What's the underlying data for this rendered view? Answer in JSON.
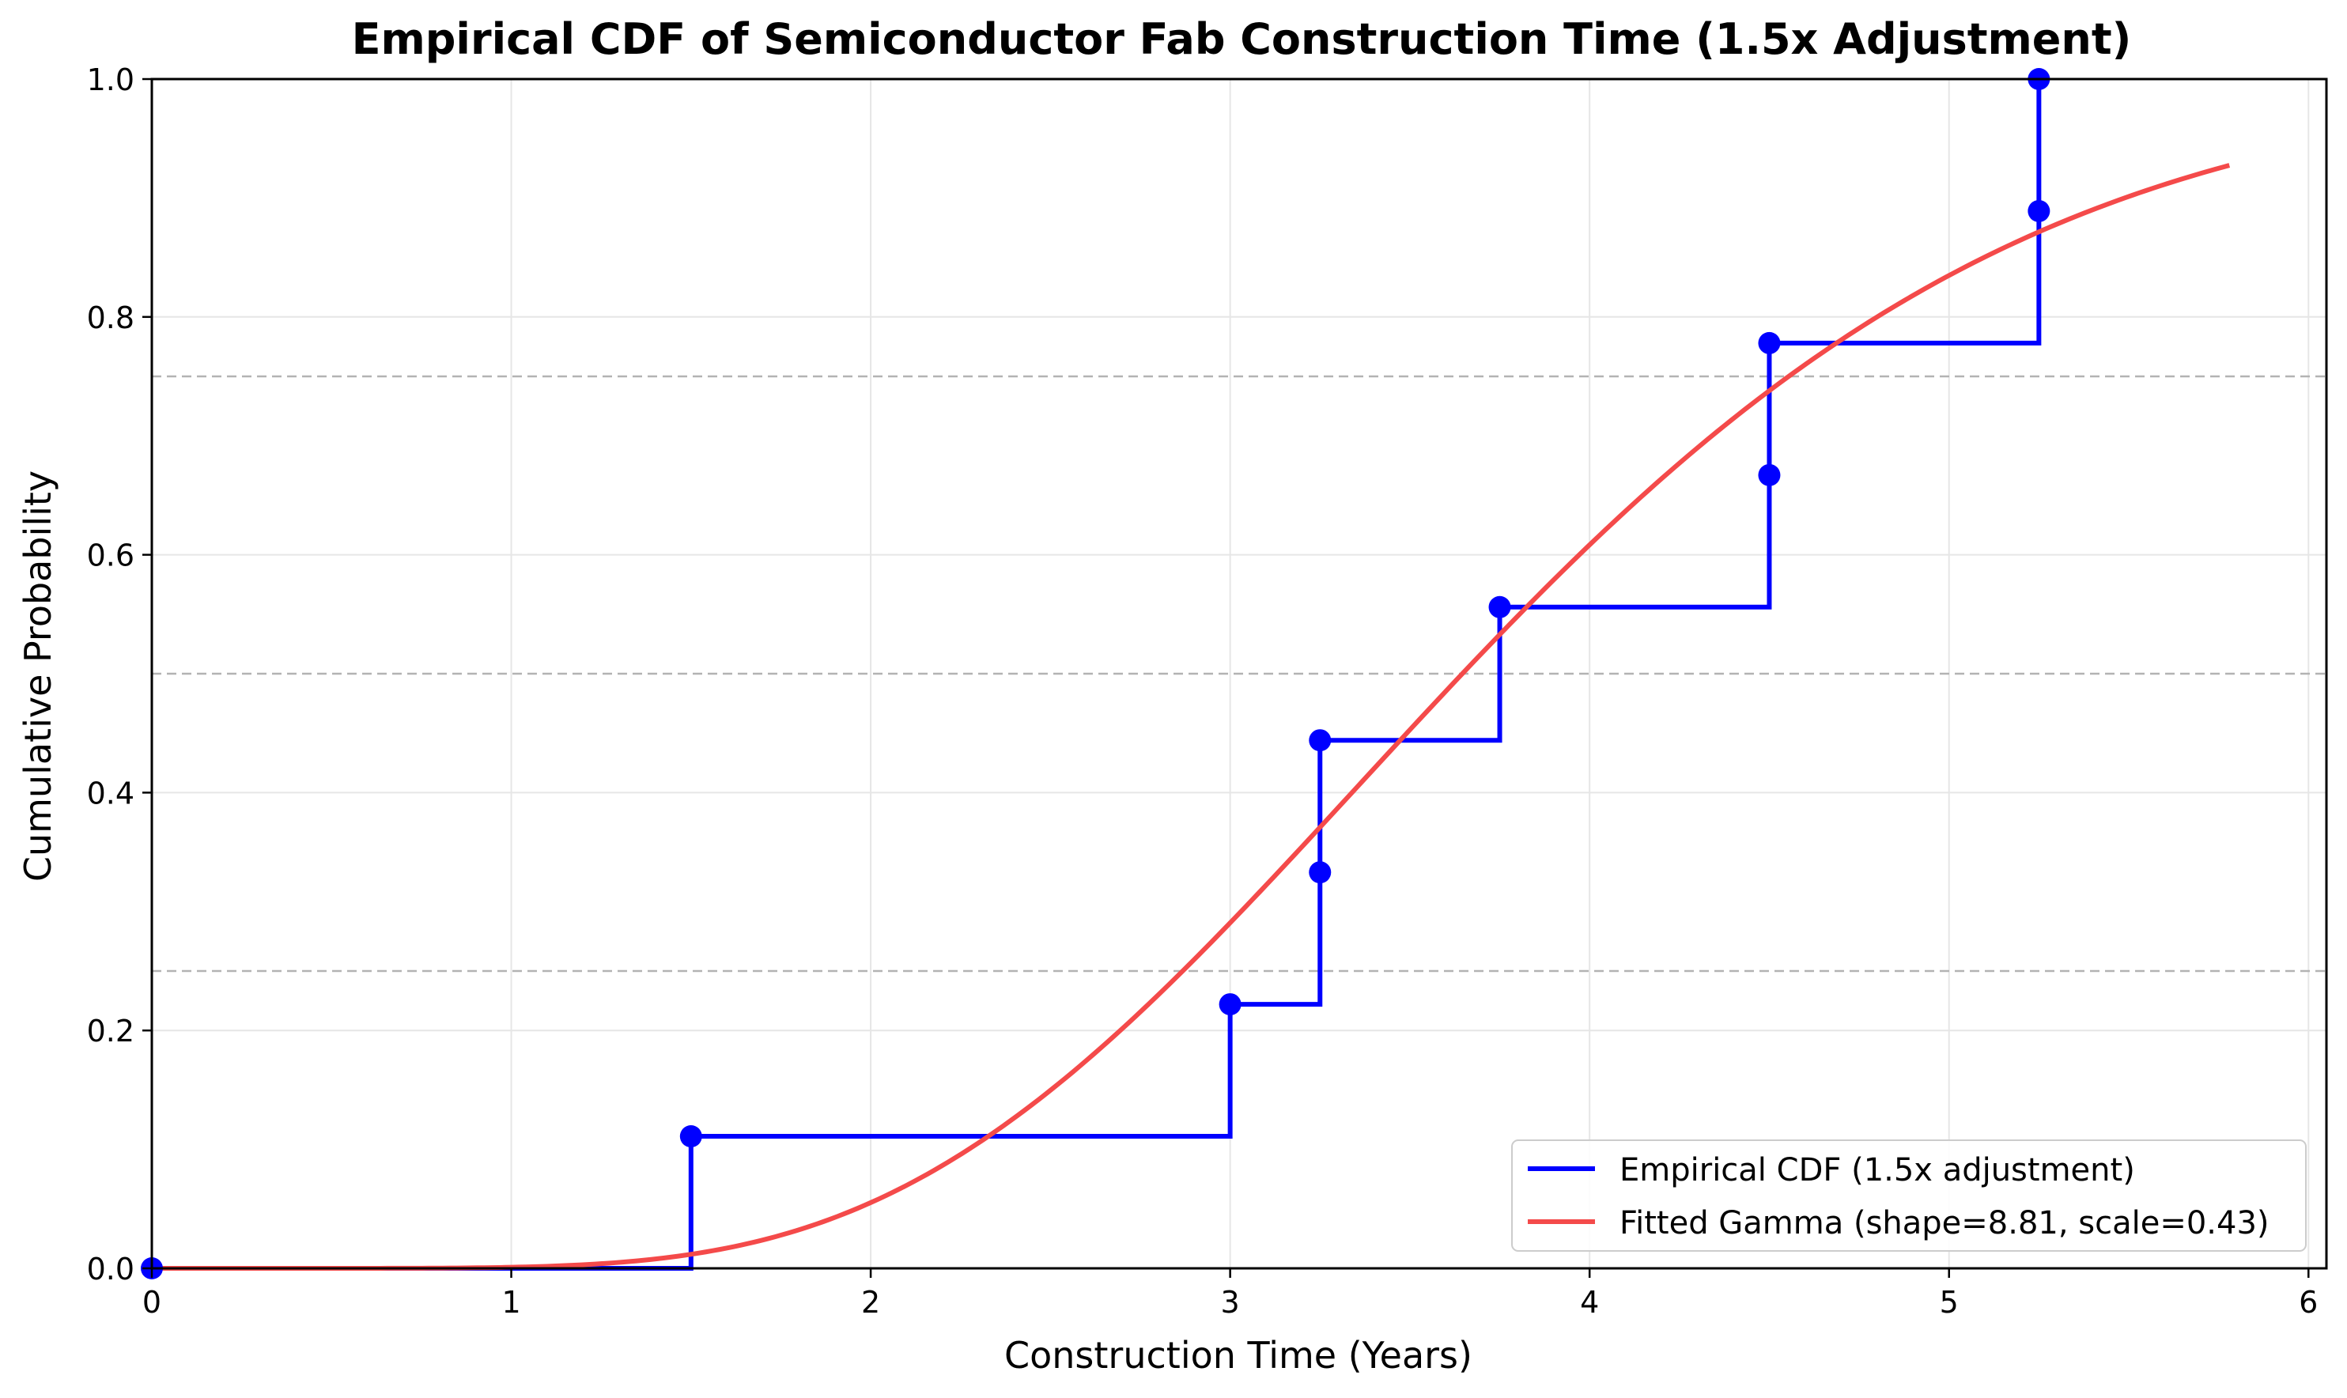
{
  "chart_data": {
    "type": "line",
    "title": "Empirical CDF of Semiconductor Fab Construction Time (1.5x Adjustment)",
    "xlabel": "Construction Time (Years)",
    "ylabel": "Cumulative Probability",
    "xlim": [
      0,
      6.05
    ],
    "ylim": [
      0,
      1.0
    ],
    "xticks": [
      0,
      1,
      2,
      3,
      4,
      5,
      6
    ],
    "yticks": [
      0.0,
      0.2,
      0.4,
      0.6,
      0.8,
      1.0
    ],
    "xtick_labels": [
      "0",
      "1",
      "2",
      "3",
      "4",
      "5",
      "6"
    ],
    "ytick_labels": [
      "0.0",
      "0.2",
      "0.4",
      "0.6",
      "0.8",
      "1.0"
    ],
    "grid": true,
    "reference_lines": [
      0.25,
      0.5,
      0.75
    ],
    "legend_position": "lower-right",
    "series": [
      {
        "name": "Empirical CDF (1.5x adjustment)",
        "kind": "step",
        "color": "#0000ff",
        "x": [
          0,
          1.5,
          3.0,
          3.25,
          3.25,
          3.75,
          4.5,
          4.5,
          5.25,
          5.25
        ],
        "y": [
          0.0,
          0.111,
          0.222,
          0.333,
          0.444,
          0.556,
          0.667,
          0.778,
          0.889,
          1.0
        ]
      },
      {
        "name": "Fitted Gamma (shape=8.81, scale=0.43)",
        "kind": "curve",
        "color": "#f44a4a",
        "distribution": "gamma",
        "shape": 8.81,
        "scale": 0.43,
        "x_range": [
          0,
          5.78
        ]
      }
    ]
  }
}
